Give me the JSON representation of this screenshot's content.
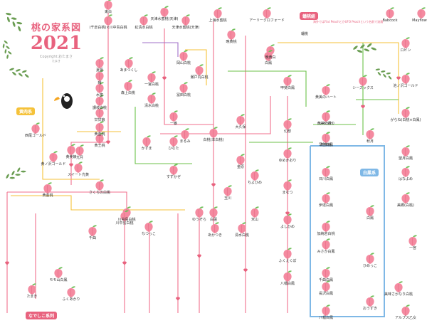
{
  "title": {
    "main": "桃の家系図",
    "year": "2021",
    "copyright": "Copyright:おたまさ",
    "sub": "たまき"
  },
  "labels": {
    "flat_peach": "蟠桃組",
    "flat_peach_item": "蟠桃",
    "flat_peach_note": "海外ではFlat PeachとかUFO Peachという名前で流通",
    "group_left": "黄肉系",
    "group_blue": "白鳳系",
    "group_bottom": "なでしこ系列"
  },
  "peaches": [
    {
      "id": "tenjin",
      "name": "天津水蜜桃(天津)"
    },
    {
      "id": "shanghai",
      "name": "上海水蜜桃"
    },
    {
      "id": "arly",
      "name": "アーリークロフォード"
    },
    {
      "id": "babcock",
      "name": "Babcock"
    },
    {
      "id": "mayflower",
      "name": "Mayflower"
    },
    {
      "id": "higashi",
      "name": "東白"
    },
    {
      "id": "chiyoda",
      "name": "(千倉白桃)×川中島白桃"
    },
    {
      "id": "benisui",
      "name": "紅清水白桃"
    },
    {
      "id": "tennoshirahou",
      "name": "天津水蜜桃(天津)"
    },
    {
      "id": "kinkyo",
      "name": "晩黄桃"
    },
    {
      "id": "sakigake",
      "name": "晩黄白"
    },
    {
      "id": "hakuho",
      "name": "白鳳"
    },
    {
      "id": "rogin",
      "name": "ロビン"
    },
    {
      "id": "chiyomaru",
      "name": "池ノ沢ゴールド"
    },
    {
      "id": "amatsu",
      "name": "あまつくし"
    },
    {
      "id": "okayama",
      "name": "岡山白桃"
    },
    {
      "id": "seto",
      "name": "瀬戸内白桃"
    },
    {
      "id": "kiyoshi",
      "name": "清水白桃"
    },
    {
      "id": "yamato",
      "name": "冨田白桃"
    },
    {
      "id": "ichinomiya",
      "name": "一宮白桃"
    },
    {
      "id": "mori",
      "name": "森上白桃"
    },
    {
      "id": "natsuki",
      "name": "夏姫"
    },
    {
      "id": "akebono",
      "name": "曙"
    },
    {
      "id": "suimitsu",
      "name": "水蜜"
    },
    {
      "id": "sanuki",
      "name": "讃岐白桃"
    },
    {
      "id": "kankan",
      "name": "甘甘娘"
    },
    {
      "id": "ogon",
      "name": "黄金桃"
    },
    {
      "id": "kinshou",
      "name": "黄王桃"
    },
    {
      "id": "nishiogon",
      "name": "西尾ゴールド"
    },
    {
      "id": "kiyomi",
      "name": "黄美娘"
    },
    {
      "id": "kinkira",
      "name": "黄ノ沢ゴールド"
    },
    {
      "id": "sweet",
      "name": "スイート光黄"
    },
    {
      "id": "hikari",
      "name": "光月"
    },
    {
      "id": "kokumi",
      "name": "黄金桃"
    },
    {
      "id": "sakura",
      "name": "さくらの白桃"
    },
    {
      "id": "kawanaka",
      "name": "川中島白桃"
    },
    {
      "id": "hakutou",
      "name": "白桃(本白桃)"
    },
    {
      "id": "oku",
      "name": "大久保"
    },
    {
      "id": "akatsuki",
      "name": "あかつき"
    },
    {
      "id": "yumeyu",
      "name": "ゆめかおり"
    },
    {
      "id": "hinoki",
      "name": "日川白鳳"
    },
    {
      "id": "mano",
      "name": "まなつ"
    },
    {
      "id": "iga",
      "name": "伊達白鳳"
    },
    {
      "id": "hakuou",
      "name": "白鳳"
    },
    {
      "id": "kanou",
      "name": "加納岩白桃"
    },
    {
      "id": "mikawa",
      "name": "みさか白鳳"
    },
    {
      "id": "hataka",
      "name": "八幡白鳳"
    },
    {
      "id": "chiyohime",
      "name": "千曲白鳳"
    },
    {
      "id": "nagasawa",
      "name": "長沢白鳳"
    },
    {
      "id": "natsukko",
      "name": "なつっこ"
    },
    {
      "id": "yuzora",
      "name": "ゆうぞら"
    },
    {
      "id": "kawanakaB",
      "name": "川中島白桃"
    },
    {
      "id": "chiyoko",
      "name": "千曲"
    },
    {
      "id": "fukuenoki",
      "name": "ふくえくぼ"
    },
    {
      "id": "fukunomi",
      "name": "ふくあかり"
    },
    {
      "id": "tamaki",
      "name": "たまき"
    },
    {
      "id": "momoyama",
      "name": "モモ山白鳳"
    },
    {
      "id": "yoshihime",
      "name": "よしひめ"
    },
    {
      "id": "shimizuB",
      "name": "清水白桃"
    },
    {
      "id": "ichimoku",
      "name": "一宮"
    },
    {
      "id": "himekko",
      "name": "ひめっこ"
    },
    {
      "id": "alps",
      "name": "アルプス乙女"
    },
    {
      "id": "shiritsu",
      "name": "美味さかなり白桃"
    },
    {
      "id": "ouzuki",
      "name": "おうずき"
    },
    {
      "id": "akizuki",
      "name": "秋月"
    },
    {
      "id": "hanayome",
      "name": "はなよめ"
    },
    {
      "id": "biwa",
      "name": "美郷(白桃)"
    },
    {
      "id": "gokou",
      "name": "がらね(白桃×白鳳)"
    },
    {
      "id": "mochizuki",
      "name": "望月白鳳"
    },
    {
      "id": "kurokawa",
      "name": "くろかわ"
    },
    {
      "id": "saki",
      "name": "早生白鳳"
    },
    {
      "id": "kaorin",
      "name": "黄美の香り"
    },
    {
      "id": "shinkiku",
      "name": "新黄桃"
    },
    {
      "id": "gensou",
      "name": "幻想"
    },
    {
      "id": "kinbara",
      "name": "金原"
    },
    {
      "id": "chiyogen",
      "name": "ちよひめ"
    },
    {
      "id": "tamagawa",
      "name": "玉川"
    },
    {
      "id": "hachiman",
      "name": "八幡白鳳"
    },
    {
      "id": "yoneyama",
      "name": "米山"
    },
    {
      "id": "suzukaze",
      "name": "すずかぜ"
    },
    {
      "id": "hinata",
      "name": "ひなた"
    },
    {
      "id": "seasons",
      "name": "シーズックス"
    },
    {
      "id": "kounomi",
      "name": "黄美のハート"
    },
    {
      "id": "kaiji",
      "name": "甲斐白鳳"
    },
    {
      "id": "marumi",
      "name": "まるみ"
    },
    {
      "id": "kazuma",
      "name": "かずま"
    },
    {
      "id": "ichiban",
      "name": "一番"
    },
    {
      "id": "hakuren",
      "name": "白蓮"
    }
  ],
  "colors": {
    "peach": "#f48aa0",
    "peach_dark": "#e8627e",
    "leaf": "#6fbf5a",
    "line_pink": "#f06f8c",
    "line_yellow": "#f5c23a",
    "line_green": "#6cc24a",
    "line_blue": "#7fb8e6",
    "line_purple": "#a070c8"
  }
}
